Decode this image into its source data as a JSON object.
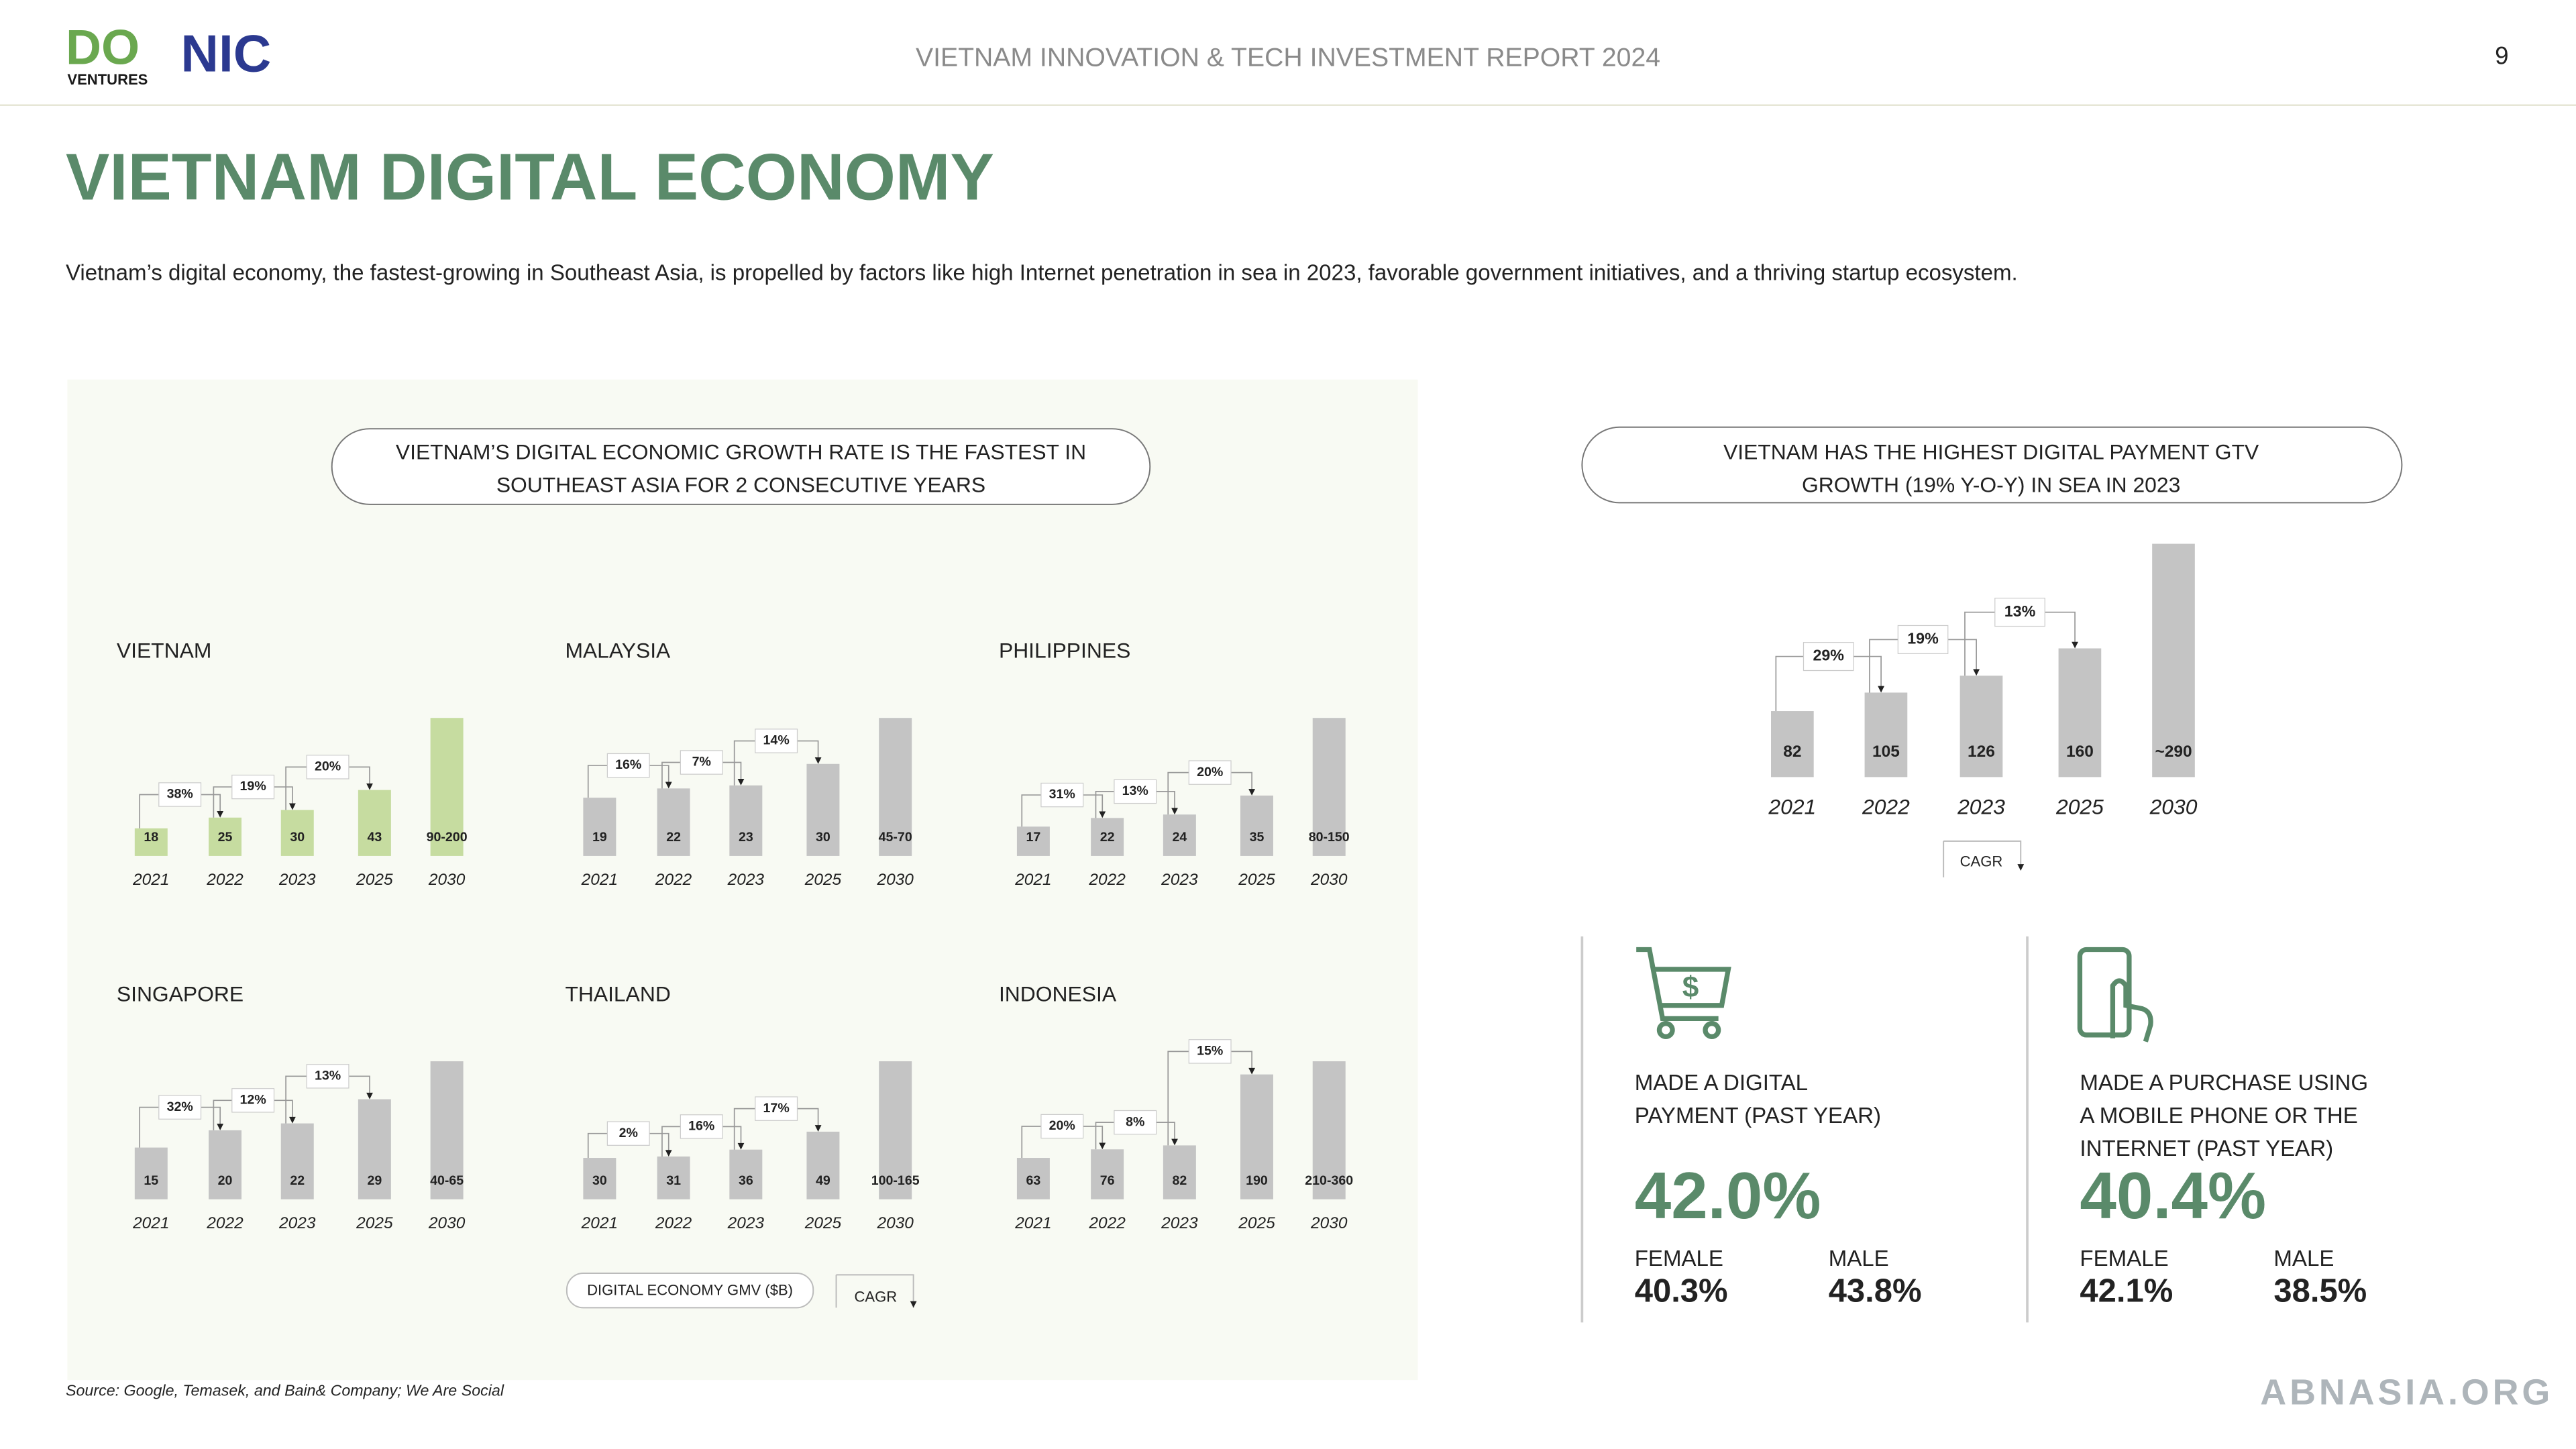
{
  "header": {
    "logo_primary": "DO",
    "logo_secondary": "VENTURES",
    "logo_partner": "NIC",
    "report_title": "VIETNAM INNOVATION & TECH INVESTMENT REPORT 2024",
    "page_number": "9"
  },
  "title": "VIETNAM DIGITAL ECONOMY",
  "description": "Vietnam’s digital economy, the fastest-growing in Southeast Asia, is propelled by factors like high Internet penetration in sea in 2023, favorable government initiatives, and a thriving startup ecosystem.",
  "panel": {
    "heading": [
      "VIETNAM’S DIGITAL ECONOMIC GROWTH RATE IS THE FASTEST IN",
      "SOUTHEAST ASIA FOR 2 CONSECUTIVE YEARS"
    ],
    "legend": {
      "gmv": "DIGITAL ECONOMY GMV ($B)",
      "cagr": "CAGR"
    }
  },
  "chart_data": [
    {
      "type": "bar",
      "title": "VIETNAM",
      "categories": [
        "2021",
        "2022",
        "2023",
        "2025",
        "2030"
      ],
      "values": [
        18,
        25,
        30,
        43,
        90
      ],
      "value_labels": [
        "18",
        "25",
        "30",
        "43",
        "90-200"
      ],
      "color": "#c6dca0",
      "cagr": {
        "values": [
          38,
          19,
          20
        ],
        "value_labels": [
          "38%",
          "19%",
          "20%"
        ]
      }
    },
    {
      "type": "bar",
      "title": "MALAYSIA",
      "categories": [
        "2021",
        "2022",
        "2023",
        "2025",
        "2030"
      ],
      "values": [
        19,
        22,
        23,
        30,
        45
      ],
      "value_labels": [
        "19",
        "22",
        "23",
        "30",
        "45-70"
      ],
      "color": "#c4c4c4",
      "cagr": {
        "values": [
          16,
          7,
          14
        ],
        "value_labels": [
          "16%",
          "7%",
          "14%"
        ]
      }
    },
    {
      "type": "bar",
      "title": "PHILIPPINES",
      "categories": [
        "2021",
        "2022",
        "2023",
        "2025",
        "2030"
      ],
      "values": [
        17,
        22,
        24,
        35,
        80
      ],
      "value_labels": [
        "17",
        "22",
        "24",
        "35",
        "80-150"
      ],
      "color": "#c4c4c4",
      "cagr": {
        "values": [
          31,
          13,
          20
        ],
        "value_labels": [
          "31%",
          "13%",
          "20%"
        ]
      }
    },
    {
      "type": "bar",
      "title": "SINGAPORE",
      "categories": [
        "2021",
        "2022",
        "2023",
        "2025",
        "2030"
      ],
      "values": [
        15,
        20,
        22,
        29,
        40
      ],
      "value_labels": [
        "15",
        "20",
        "22",
        "29",
        "40-65"
      ],
      "color": "#c4c4c4",
      "cagr": {
        "values": [
          32,
          12,
          13
        ],
        "value_labels": [
          "32%",
          "12%",
          "13%"
        ]
      }
    },
    {
      "type": "bar",
      "title": "THAILAND",
      "categories": [
        "2021",
        "2022",
        "2023",
        "2025",
        "2030"
      ],
      "values": [
        30,
        31,
        36,
        49,
        100
      ],
      "value_labels": [
        "30",
        "31",
        "36",
        "49",
        "100-165"
      ],
      "color": "#c4c4c4",
      "cagr": {
        "values": [
          2,
          16,
          17
        ],
        "value_labels": [
          "2%",
          "16%",
          "17%"
        ]
      }
    },
    {
      "type": "bar",
      "title": "INDONESIA",
      "categories": [
        "2021",
        "2022",
        "2023",
        "2025",
        "2030"
      ],
      "values": [
        63,
        76,
        82,
        190,
        210
      ],
      "value_labels": [
        "63",
        "76",
        "82",
        "190",
        "210-360"
      ],
      "color": "#c4c4c4",
      "cagr": {
        "values": [
          20,
          8,
          15
        ],
        "value_labels": [
          "20%",
          "8%",
          "15%"
        ]
      }
    },
    {
      "type": "bar",
      "title": [
        "VIETNAM HAS THE HIGHEST DIGITAL PAYMENT GTV",
        "GROWTH (19% Y-O-Y) IN SEA IN 2023"
      ],
      "categories": [
        "2021",
        "2022",
        "2023",
        "2025",
        "2030"
      ],
      "values": [
        82,
        105,
        126,
        160,
        290
      ],
      "value_labels": [
        "82",
        "105",
        "126",
        "160",
        "~290"
      ],
      "color": "#c4c4c4",
      "cagr": {
        "values": [
          29,
          19,
          13
        ],
        "value_labels": [
          "29%",
          "19%",
          "13%"
        ]
      },
      "cagr_legend": "CAGR"
    }
  ],
  "stats": [
    {
      "label": [
        "MADE A DIGITAL",
        "PAYMENT (PAST YEAR)"
      ],
      "value": "42.0%",
      "female_label": "FEMALE",
      "female": "40.3%",
      "male_label": "MALE",
      "male": "43.8%"
    },
    {
      "label": [
        "MADE A PURCHASE USING",
        "A MOBILE PHONE OR THE",
        "INTERNET (PAST YEAR)"
      ],
      "value": "40.4%",
      "female_label": "FEMALE",
      "female": "42.1%",
      "male_label": "MALE",
      "male": "38.5%"
    }
  ],
  "source": "Source: Google, Temasek, and Bain& Company; We Are Social",
  "watermark": "ABNASIA.ORG"
}
